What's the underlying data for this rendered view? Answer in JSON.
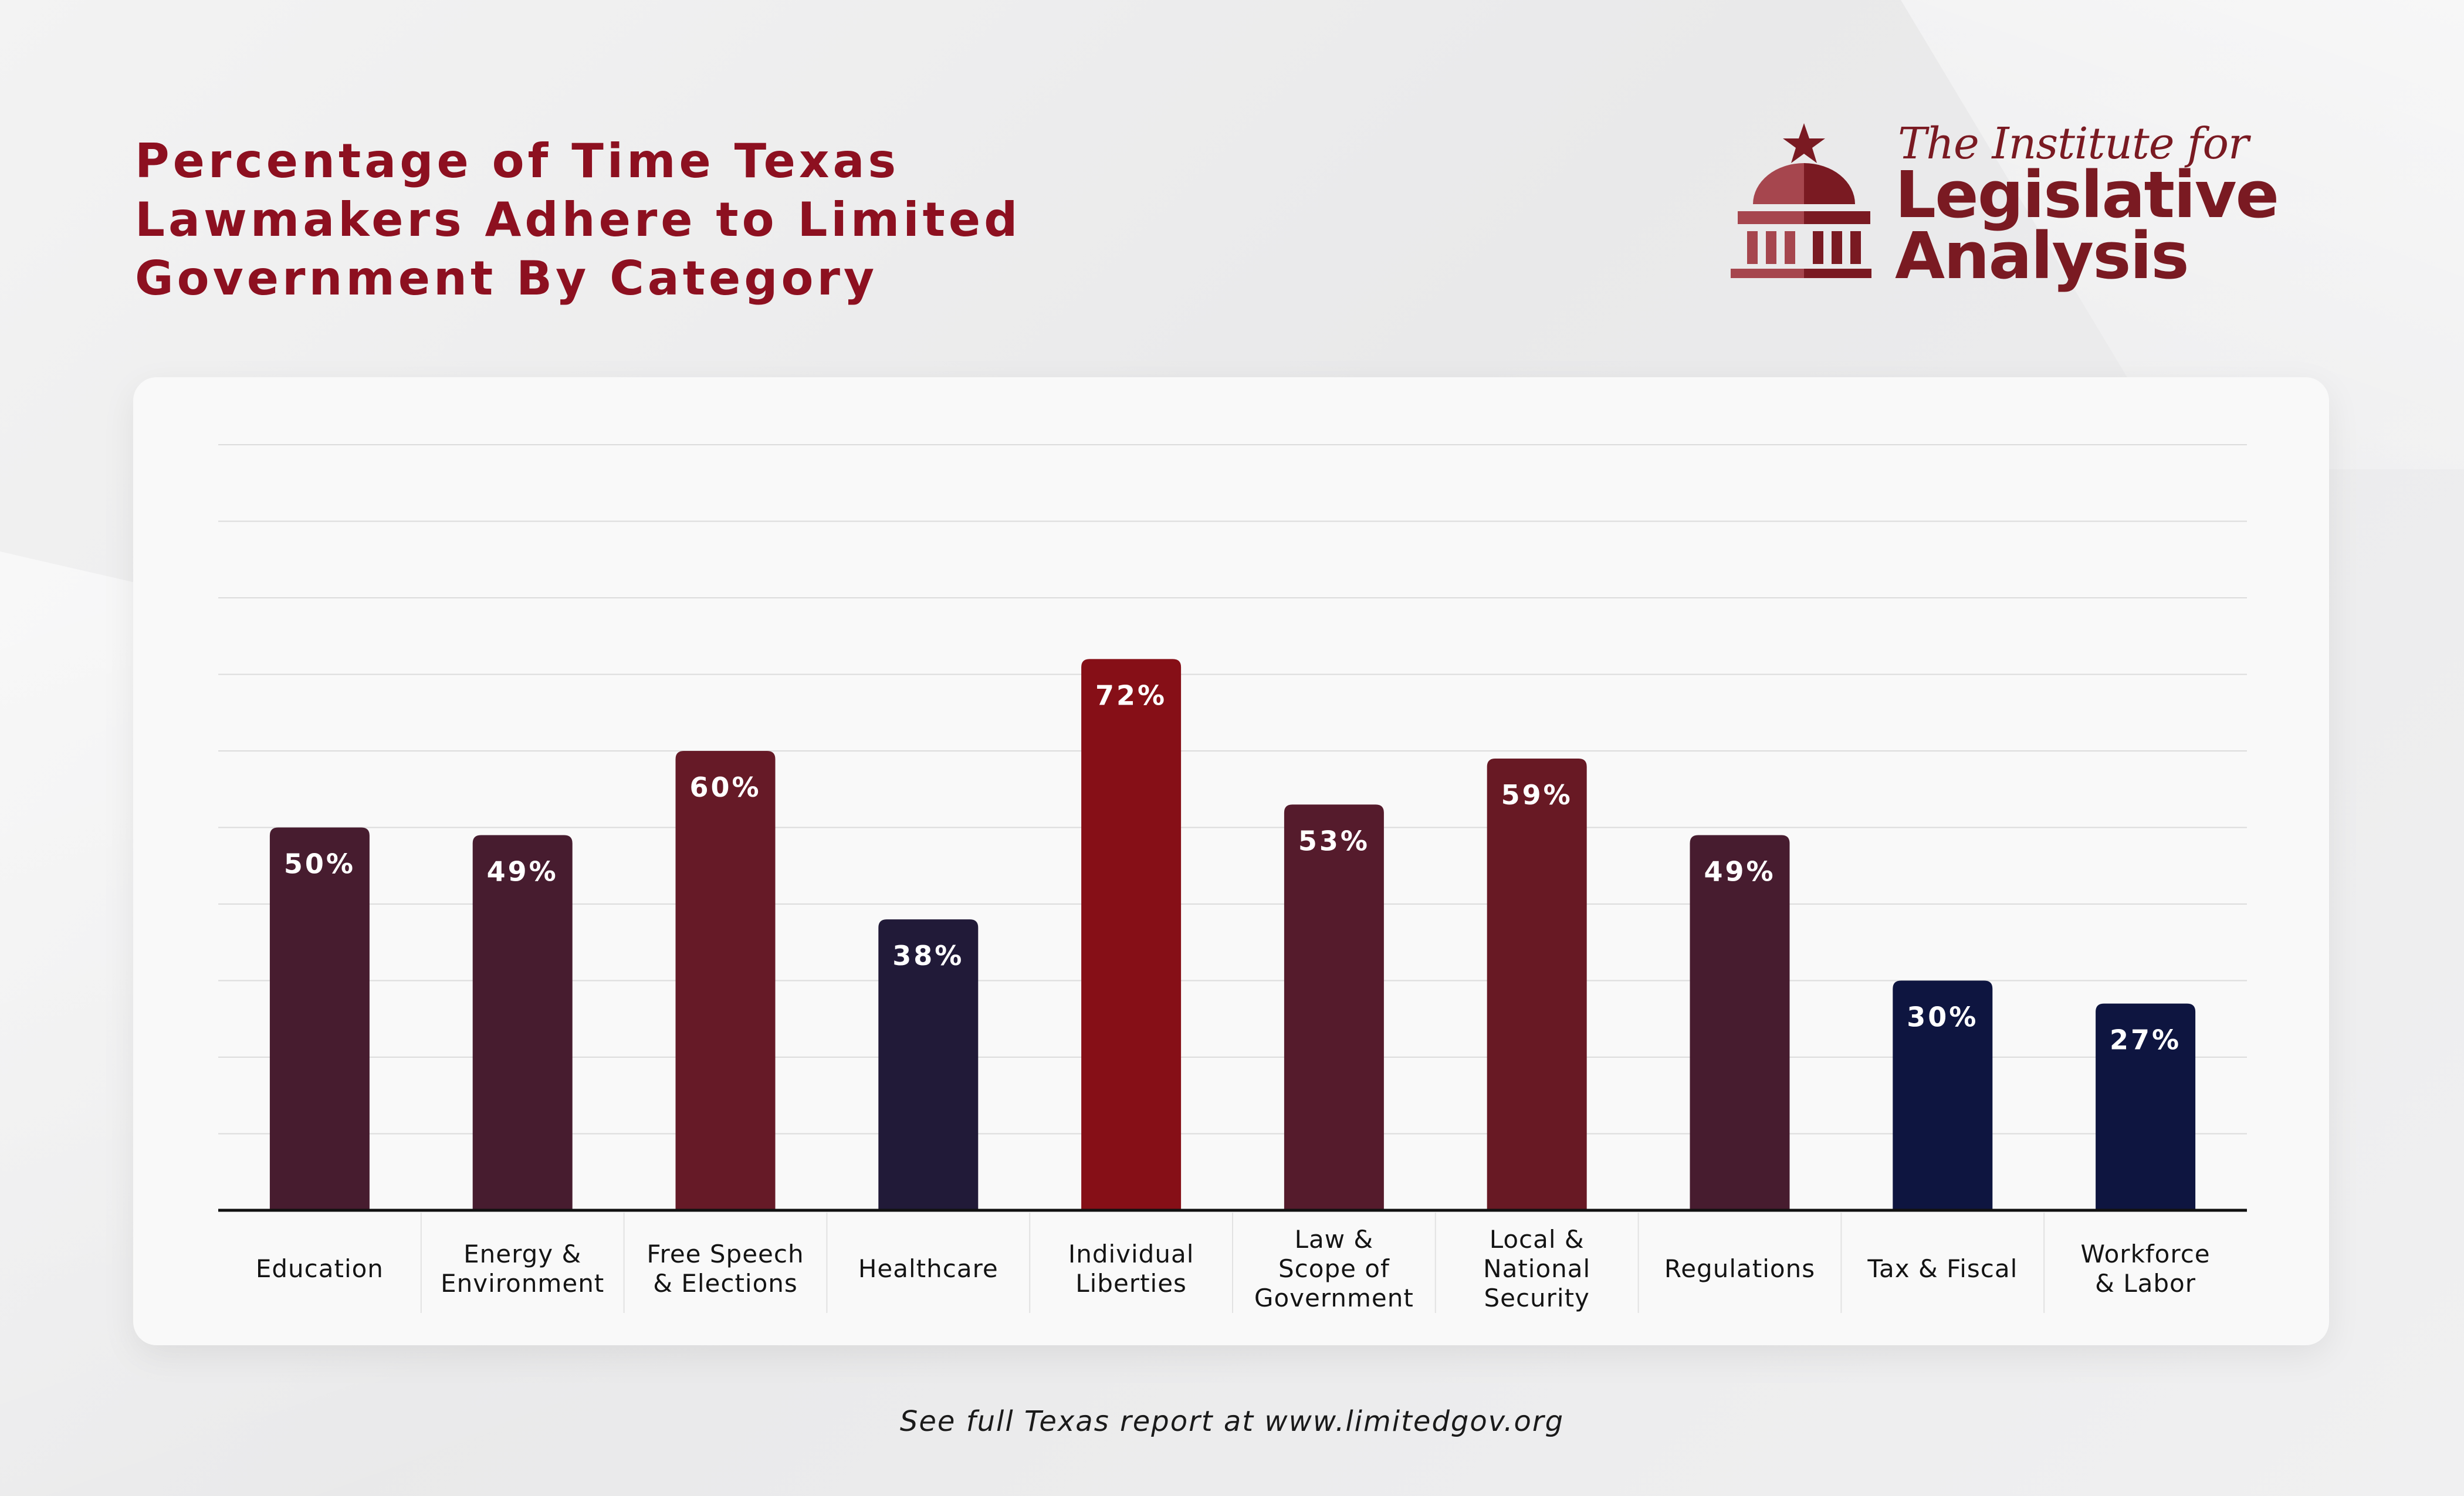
{
  "page": {
    "title_lines": [
      "Percentage of Time Texas",
      "Lawmakers Adhere to Limited",
      "Government By Category"
    ],
    "footer": "See full Texas report at www.limitedgov.org"
  },
  "logo": {
    "line1": "The Institute for",
    "line2": "Legislative",
    "line3": "Analysis",
    "icon": "capitol-dome-with-star-icon",
    "color": "#7a1a22"
  },
  "chart_data": {
    "type": "bar",
    "title": "",
    "xlabel": "",
    "ylabel": "",
    "ylim": [
      0,
      100
    ],
    "grid": true,
    "grid_step": 10,
    "categories": [
      {
        "lines": [
          "Education"
        ],
        "icon": "graduation-cap-icon"
      },
      {
        "lines": [
          "Energy &",
          "Environment"
        ],
        "icon": "factory-icon"
      },
      {
        "lines": [
          "Free Speech",
          "& Elections"
        ],
        "icon": "speech-bubble-icon"
      },
      {
        "lines": [
          "Healthcare"
        ],
        "icon": "caduceus-icon"
      },
      {
        "lines": [
          "Individual",
          "Liberties"
        ],
        "icon": "torch-icon"
      },
      {
        "lines": [
          "Law &",
          "Scope of",
          "Government"
        ],
        "icon": "scales-icon"
      },
      {
        "lines": [
          "Local &",
          "National",
          "Security"
        ],
        "icon": "shield-icon"
      },
      {
        "lines": [
          "Regulations"
        ],
        "icon": "document-icon"
      },
      {
        "lines": [
          "Tax & Fiscal"
        ],
        "icon": "dollar-icon"
      },
      {
        "lines": [
          "Workforce",
          "& Labor"
        ],
        "icon": "hard-hat-icon"
      }
    ],
    "values": [
      50,
      49,
      60,
      38,
      72,
      53,
      59,
      49,
      30,
      27
    ],
    "value_labels": [
      "50%",
      "49%",
      "60%",
      "38%",
      "72%",
      "53%",
      "59%",
      "49%",
      "30%",
      "27%"
    ],
    "colors": [
      "#471c2f",
      "#471c2f",
      "#661a27",
      "#211a38",
      "#860f17",
      "#551b2c",
      "#681924",
      "#471c2f",
      "#0e1540",
      "#0e1540"
    ]
  }
}
